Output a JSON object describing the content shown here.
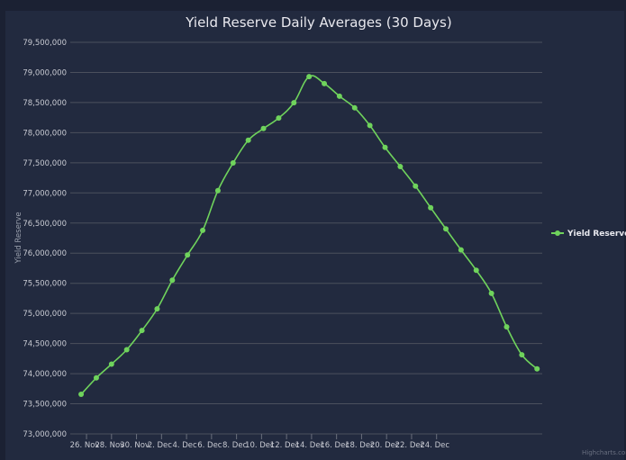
{
  "chart_data": {
    "type": "line",
    "title": "Yield Reserve Daily Averages (30 Days)",
    "xlabel": "",
    "ylabel": "Yield Reserve",
    "ylim": [
      73000000,
      79500000
    ],
    "y_ticks": [
      73000000,
      73500000,
      74000000,
      74500000,
      75000000,
      75500000,
      76000000,
      76500000,
      77000000,
      77500000,
      78000000,
      78500000,
      79000000,
      79500000
    ],
    "y_tick_labels": [
      "73,000,000",
      "73,500,000",
      "74,000,000",
      "74,500,000",
      "75,000,000",
      "75,500,000",
      "76,000,000",
      "76,500,000",
      "77,000,000",
      "77,500,000",
      "78,000,000",
      "78,500,000",
      "79,000,000",
      "79,500,000"
    ],
    "x_tick_labels": [
      "26. Nov",
      "28. Nov",
      "30. Nov",
      "2. Dec",
      "4. Dec",
      "6. Dec",
      "8. Dec",
      "10. Dec",
      "12. Dec",
      "14. Dec",
      "16. Dec",
      "18. Dec",
      "20. Dec",
      "22. Dec",
      "24. Dec"
    ],
    "x_tick_days": [
      0,
      2,
      4,
      6,
      8,
      10,
      12,
      14,
      16,
      18,
      20,
      22,
      24,
      26,
      28
    ],
    "x_unit": "days since 26. Nov",
    "xlim_days": [
      -1.3,
      36.45
    ],
    "x_start_day": -0.43,
    "x_step_days": 1.2155,
    "grid": true,
    "legend_position": "right",
    "series": [
      {
        "name": "Yield Reserve",
        "color": "#6fd35c",
        "values": [
          73657000,
          73930000,
          74158000,
          74397000,
          74716000,
          75075000,
          75552000,
          75970000,
          76378000,
          77039000,
          77497000,
          77875000,
          78069000,
          78243000,
          78497000,
          78930000,
          78815000,
          78606000,
          78412000,
          78119000,
          77755000,
          77437000,
          77113000,
          76755000,
          76403000,
          76054000,
          75716000,
          75333000,
          74776000,
          74313000,
          74079000
        ]
      }
    ],
    "credits": "Highcharts.com"
  }
}
